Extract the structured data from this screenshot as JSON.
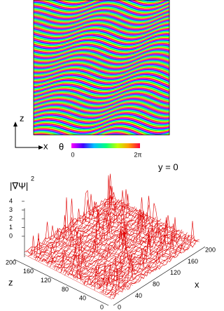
{
  "top_panel": {
    "axis_z": "z",
    "axis_x": "x",
    "colorbar_symbol": "θ",
    "colorbar_min": "0",
    "colorbar_max": "2π"
  },
  "bottom_panel": {
    "slice_label": "y = 0",
    "vertical_label": "|∇Ψ|",
    "vertical_label_power": "2",
    "vertical_ticks": [
      0,
      1,
      2,
      3,
      4
    ],
    "z_label": "z",
    "z_ticks": [
      0,
      40,
      80,
      120,
      160,
      200
    ],
    "x_label": "x",
    "x_ticks": [
      0,
      40,
      80,
      120,
      160,
      200
    ]
  }
}
